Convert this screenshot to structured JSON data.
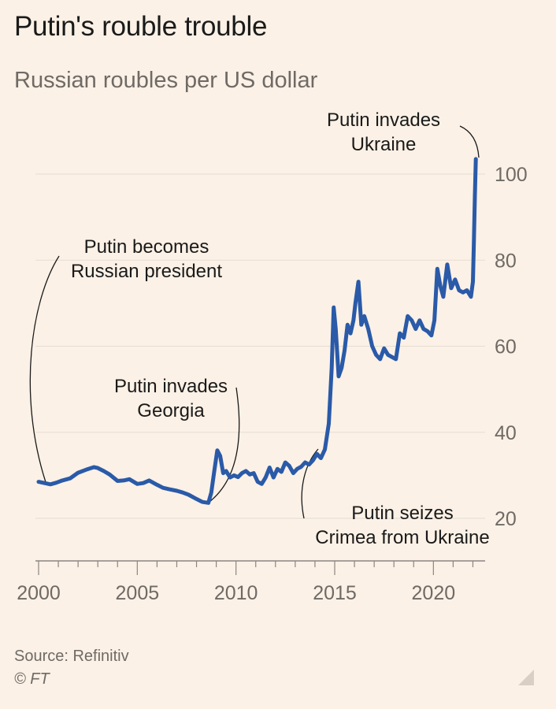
{
  "header": {
    "title": "Putin's rouble trouble",
    "subtitle": "Russian roubles per US dollar"
  },
  "footer": {
    "source": "Source: Refinitiv",
    "credit": "© FT"
  },
  "colors": {
    "background": "#fbf1e6",
    "line": "#2a5aa8",
    "grid": "#e6ddd3",
    "text": "#1a1a1a",
    "muted": "#6f6a66"
  },
  "chart_data": {
    "type": "line",
    "title": "Putin's rouble trouble",
    "subtitle": "Russian roubles per US dollar",
    "xlim": [
      2000,
      2022.5
    ],
    "ylim": [
      10,
      108
    ],
    "y_ticks": [
      20,
      40,
      60,
      80,
      100
    ],
    "x_ticks": [
      2000,
      2005,
      2010,
      2015,
      2020
    ],
    "y_axis_side": "right",
    "grid": true,
    "series": [
      {
        "x": [
          2000,
          2000.3,
          2000.6,
          2000.9,
          2001.2,
          2001.6,
          2002.0,
          2002.4,
          2002.8,
          2003.0,
          2003.3,
          2003.6,
          2004.0,
          2004.3,
          2004.6,
          2005.0,
          2005.3,
          2005.6,
          2006.0,
          2006.3,
          2006.6,
          2007.0,
          2007.3,
          2007.6,
          2008.0,
          2008.3,
          2008.6,
          2008.75,
          2008.9,
          2009.05,
          2009.2,
          2009.35,
          2009.5,
          2009.7,
          2009.9,
          2010.1,
          2010.3,
          2010.5,
          2010.7,
          2010.9,
          2011.1,
          2011.3,
          2011.5,
          2011.7,
          2011.9,
          2012.1,
          2012.3,
          2012.5,
          2012.7,
          2012.9,
          2013.1,
          2013.3,
          2013.5,
          2013.7,
          2013.9,
          2014.1,
          2014.3,
          2014.5,
          2014.7,
          2014.85,
          2014.95,
          2015.05,
          2015.2,
          2015.35,
          2015.5,
          2015.65,
          2015.8,
          2015.95,
          2016.05,
          2016.2,
          2016.35,
          2016.5,
          2016.7,
          2016.9,
          2017.1,
          2017.3,
          2017.5,
          2017.7,
          2017.9,
          2018.1,
          2018.3,
          2018.5,
          2018.7,
          2018.9,
          2019.1,
          2019.3,
          2019.5,
          2019.7,
          2019.9,
          2020.05,
          2020.2,
          2020.35,
          2020.5,
          2020.7,
          2020.9,
          2021.1,
          2021.3,
          2021.5,
          2021.7,
          2021.9,
          2022.0,
          2022.05,
          2022.1,
          2022.15
        ],
        "y": [
          28.5,
          28.2,
          27.9,
          28.3,
          28.8,
          29.3,
          30.6,
          31.3,
          31.9,
          31.7,
          31.0,
          30.2,
          28.7,
          28.8,
          29.1,
          28.0,
          28.2,
          28.8,
          27.8,
          27.1,
          26.8,
          26.4,
          26.0,
          25.5,
          24.5,
          23.8,
          23.6,
          26.0,
          31.0,
          35.8,
          34.5,
          30.5,
          31.0,
          29.5,
          30.0,
          29.6,
          30.5,
          31.0,
          30.2,
          30.5,
          28.5,
          28.0,
          29.5,
          31.8,
          29.5,
          31.5,
          30.8,
          33.0,
          32.2,
          30.5,
          31.5,
          32.0,
          33.0,
          32.5,
          33.5,
          35.0,
          34.0,
          36.0,
          42.0,
          55.0,
          69.0,
          64.0,
          53.0,
          55.0,
          59.0,
          65.0,
          63.0,
          66.0,
          70.0,
          75.0,
          65.0,
          67.0,
          64.0,
          60.0,
          58.0,
          57.0,
          59.5,
          58.0,
          57.5,
          57.0,
          63.0,
          62.0,
          67.0,
          66.0,
          64.0,
          66.0,
          64.0,
          63.5,
          62.5,
          66.0,
          78.0,
          74.0,
          71.5,
          79.0,
          73.5,
          75.5,
          73.0,
          72.5,
          73.0,
          71.5,
          75.0,
          84.0,
          95.0,
          103.5
        ]
      }
    ],
    "annotations": [
      {
        "label": "Putin becomes Russian president",
        "lines": [
          "Putin becomes",
          "Russian president"
        ]
      },
      {
        "label": "Putin invades Georgia",
        "lines": [
          "Putin invades",
          "Georgia"
        ]
      },
      {
        "label": "Putin seizes Crimea from Ukraine",
        "lines": [
          "Putin seizes",
          "Crimea from Ukraine"
        ]
      },
      {
        "label": "Putin invades Ukraine",
        "lines": [
          "Putin invades",
          "Ukraine"
        ]
      }
    ]
  }
}
